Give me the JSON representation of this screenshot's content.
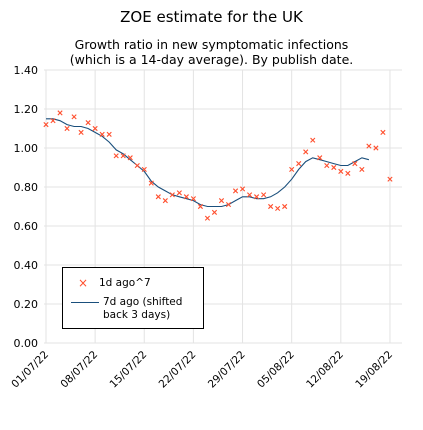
{
  "chart_data": {
    "type": "line",
    "title": "ZOE estimate for the UK",
    "subtitle_line1": "Growth ratio in new symptomatic infections",
    "subtitle_line2": "(which is a 14-day average). By publish date.",
    "xlabel": "",
    "ylabel": "",
    "ylim": [
      0.0,
      1.4
    ],
    "yticks": [
      "0.00",
      "0.20",
      "0.40",
      "0.60",
      "0.80",
      "1.00",
      "1.20",
      "1.40"
    ],
    "xticks": [
      "01/07/22",
      "08/07/22",
      "15/07/22",
      "22/07/22",
      "29/07/22",
      "05/08/22",
      "12/08/22",
      "19/08/22"
    ],
    "x_start": "2022-07-01",
    "grid": true,
    "legend_position": "lower-left",
    "series": [
      {
        "name": "1d ago^7",
        "style": "x-markers",
        "color": "#ff4f2e",
        "values": [
          1.12,
          1.14,
          1.18,
          1.1,
          1.16,
          1.08,
          1.13,
          1.1,
          1.07,
          1.07,
          0.96,
          0.96,
          0.95,
          0.91,
          0.89,
          0.82,
          0.75,
          0.73,
          0.76,
          0.77,
          0.75,
          0.74,
          0.7,
          0.64,
          0.67,
          0.73,
          0.71,
          0.78,
          0.79,
          0.76,
          0.75,
          0.76,
          0.7,
          0.69,
          0.7,
          0.89,
          0.92,
          0.98,
          1.04,
          0.95,
          0.91,
          0.9,
          0.88,
          0.87,
          0.92,
          0.89,
          1.01,
          1.0,
          1.08,
          0.84
        ]
      },
      {
        "name": "7d ago (shifted back 3 days)",
        "style": "line",
        "color": "#1a4f7c",
        "x_offset": 0,
        "values": [
          1.15,
          1.15,
          1.14,
          1.12,
          1.11,
          1.11,
          1.1,
          1.08,
          1.06,
          1.03,
          0.99,
          0.97,
          0.94,
          0.91,
          0.88,
          0.83,
          0.8,
          0.78,
          0.76,
          0.75,
          0.74,
          0.73,
          0.71,
          0.7,
          0.7,
          0.7,
          0.71,
          0.73,
          0.75,
          0.75,
          0.74,
          0.74,
          0.75,
          0.77,
          0.8,
          0.84,
          0.89,
          0.93,
          0.95,
          0.94,
          0.93,
          0.92,
          0.91,
          0.91,
          0.93,
          0.95,
          0.94
        ]
      }
    ]
  },
  "legend": {
    "marker_label": "1d ago^7",
    "line_label": "7d ago (shifted back 3 days)"
  },
  "icons": {
    "marker": "x-marker-icon"
  }
}
